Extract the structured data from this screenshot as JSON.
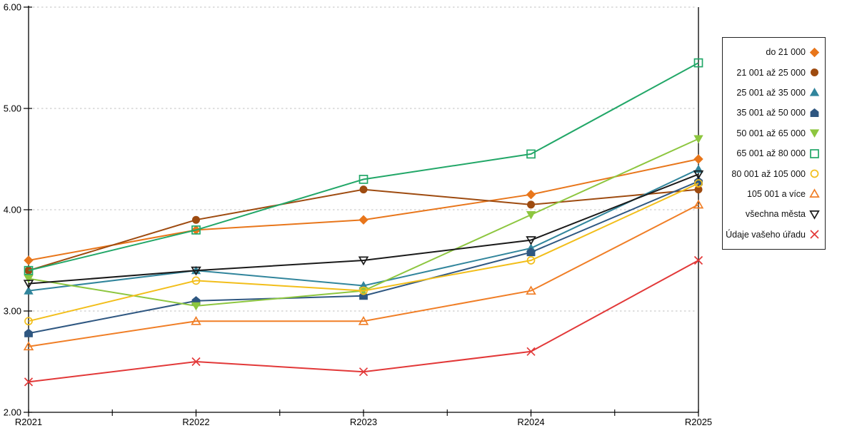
{
  "chart_data": {
    "type": "line",
    "title": "",
    "xlabel": "",
    "ylabel": "",
    "x_categories": [
      "R2021",
      "R2022",
      "R2023",
      "R2024",
      "R2025"
    ],
    "y_ticks": [
      "2.00",
      "3.00",
      "4.00",
      "5.00",
      "6.00"
    ],
    "ylim": [
      2,
      6
    ],
    "grid": "horizontal-dashed",
    "legend_position": "right-outside",
    "axis_color": "#000000",
    "gridline_color": "#bfbfbf",
    "series": [
      {
        "name": "do 21 000",
        "color": "#E8761B",
        "marker": "diamond",
        "fill": "filled",
        "values": [
          3.5,
          3.8,
          3.9,
          4.15,
          4.5
        ]
      },
      {
        "name": "21 001 až 25 000",
        "color": "#9E4B10",
        "marker": "circle",
        "fill": "filled",
        "values": [
          3.4,
          3.9,
          4.2,
          4.05,
          4.2
        ]
      },
      {
        "name": "25 001 až 35 000",
        "color": "#31859C",
        "marker": "triangle-up",
        "fill": "filled",
        "values": [
          3.2,
          3.4,
          3.25,
          3.62,
          4.4
        ]
      },
      {
        "name": "35 001 až 50 000",
        "color": "#2F5781",
        "marker": "pentagon",
        "fill": "filled",
        "values": [
          2.78,
          3.1,
          3.15,
          3.58,
          4.28
        ]
      },
      {
        "name": "50 001 až 65 000",
        "color": "#8DC63F",
        "marker": "triangle-down",
        "fill": "filled",
        "values": [
          3.32,
          3.05,
          3.2,
          3.95,
          4.7
        ]
      },
      {
        "name": "65 001 až 80 000",
        "color": "#22A768",
        "marker": "square",
        "fill": "open",
        "values": [
          3.4,
          3.8,
          4.3,
          4.55,
          5.45
        ]
      },
      {
        "name": "80 001 až 105 000",
        "color": "#F2BE1A",
        "marker": "circle",
        "fill": "open",
        "values": [
          2.9,
          3.3,
          3.2,
          3.5,
          4.26
        ]
      },
      {
        "name": "105 001 a více",
        "color": "#F07E26",
        "marker": "triangle-up",
        "fill": "open",
        "values": [
          2.65,
          2.9,
          2.9,
          3.2,
          4.05
        ]
      },
      {
        "name": "všechna města",
        "color": "#1A1A1A",
        "marker": "triangle-down",
        "fill": "open",
        "values": [
          3.27,
          3.4,
          3.5,
          3.7,
          4.35
        ]
      },
      {
        "name": "Údaje vašeho úřadu",
        "color": "#E23838",
        "marker": "x",
        "fill": "open",
        "values": [
          2.3,
          2.5,
          2.4,
          2.6,
          3.5
        ]
      }
    ]
  }
}
